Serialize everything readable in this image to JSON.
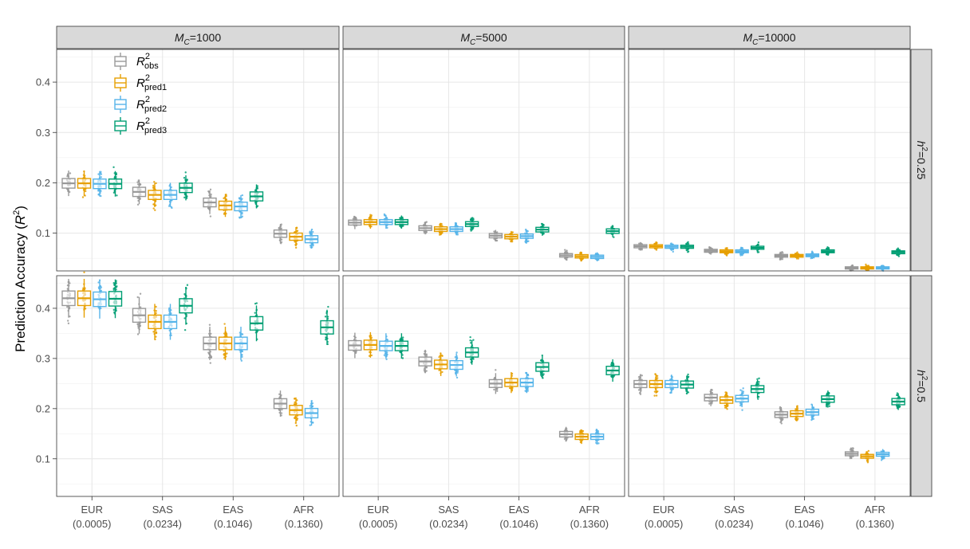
{
  "chart_data": {
    "type": "boxplot",
    "ylabel": "Prediction Accuracy (R²)",
    "ylabel_parts": {
      "main": "Prediction Accuracy (",
      "sym": "R",
      "sup": "2",
      "end": ")"
    },
    "yticks": [
      0.1,
      0.2,
      0.3,
      0.4
    ],
    "ylim": [
      0.025,
      0.465
    ],
    "categories": [
      "EUR",
      "SAS",
      "EAS",
      "AFR"
    ],
    "category_sublabels": [
      "(0.0005)",
      "(0.0234)",
      "(0.1046)",
      "(0.1360)"
    ],
    "columns": [
      {
        "prefix": "M",
        "sub": "C",
        "value": "=1000"
      },
      {
        "prefix": "M",
        "sub": "C",
        "value": "=5000"
      },
      {
        "prefix": "M",
        "sub": "C",
        "value": "=10000"
      }
    ],
    "rows": [
      {
        "prefix": "h",
        "sup": "2",
        "value": "=0.25"
      },
      {
        "prefix": "h",
        "sup": "2",
        "value": "=0.5"
      }
    ],
    "series": [
      {
        "name": "R2obs",
        "label_main": "R",
        "label_sup": "2",
        "label_sub": "obs",
        "color": "#999999"
      },
      {
        "name": "R2pred1",
        "label_main": "R",
        "label_sup": "2",
        "label_sub": "pred1",
        "color": "#E69F00"
      },
      {
        "name": "R2pred2",
        "label_main": "R",
        "label_sup": "2",
        "label_sub": "pred2",
        "color": "#56B4E9"
      },
      {
        "name": "R2pred3",
        "label_main": "R",
        "label_sup": "2",
        "label_sub": "pred3",
        "color": "#009E73"
      }
    ],
    "panels": [
      {
        "row": 0,
        "col": 0,
        "median": [
          [
            0.199,
            0.199,
            0.198,
            0.198
          ],
          [
            0.182,
            0.176,
            0.176,
            0.19
          ],
          [
            0.161,
            0.155,
            0.153,
            0.173
          ],
          [
            0.099,
            0.093,
            0.088,
            null
          ]
        ]
      },
      {
        "row": 0,
        "col": 1,
        "median": [
          [
            0.121,
            0.122,
            0.122,
            0.122
          ],
          [
            0.11,
            0.108,
            0.108,
            0.118
          ],
          [
            0.095,
            0.093,
            0.094,
            0.107
          ],
          [
            0.056,
            0.054,
            0.053,
            0.104
          ]
        ]
      },
      {
        "row": 0,
        "col": 2,
        "median": [
          [
            0.074,
            0.074,
            0.073,
            0.073
          ],
          [
            0.065,
            0.064,
            0.064,
            0.071
          ],
          [
            0.055,
            0.055,
            0.056,
            0.064
          ],
          [
            0.031,
            0.031,
            0.031,
            0.062
          ]
        ]
      },
      {
        "row": 1,
        "col": 0,
        "median": [
          [
            0.42,
            0.42,
            0.418,
            0.419
          ],
          [
            0.386,
            0.373,
            0.373,
            0.405
          ],
          [
            0.33,
            0.33,
            0.33,
            0.37
          ],
          [
            0.21,
            0.197,
            0.191,
            0.362
          ]
        ]
      },
      {
        "row": 1,
        "col": 1,
        "median": [
          [
            0.326,
            0.327,
            0.325,
            0.325
          ],
          [
            0.294,
            0.288,
            0.287,
            0.312
          ],
          [
            0.25,
            0.252,
            0.252,
            0.283
          ],
          [
            0.149,
            0.144,
            0.144,
            0.276
          ]
        ]
      },
      {
        "row": 1,
        "col": 2,
        "median": [
          [
            0.249,
            0.249,
            0.249,
            0.248
          ],
          [
            0.222,
            0.217,
            0.22,
            0.239
          ],
          [
            0.188,
            0.19,
            0.193,
            0.219
          ],
          [
            0.11,
            0.105,
            0.109,
            0.214
          ]
        ]
      }
    ],
    "grid": true,
    "legend_position": "top-left inside first panel"
  }
}
